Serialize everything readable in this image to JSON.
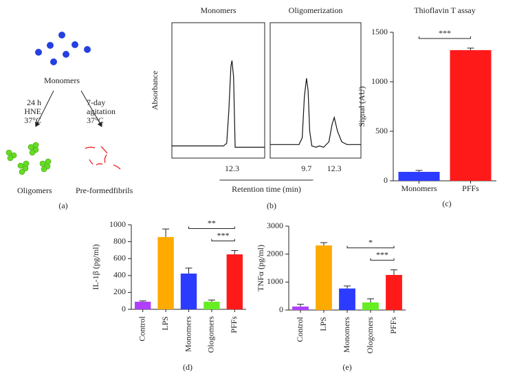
{
  "diagram": {
    "start": "Monomers",
    "left_conditions": [
      "24 h",
      "HNE",
      "37°C"
    ],
    "right_conditions": [
      "7-day",
      "agitation",
      "37°C"
    ],
    "left_product": "Oligomers",
    "right_product": "Pre-formedfibrils",
    "panel_label": "(a)"
  },
  "chart_data": [
    {
      "type": "line",
      "ylabel": "Absorbance",
      "xlabel": "Retention time (min)",
      "panel_label": "(b)",
      "panels": [
        {
          "title": "Monomers",
          "xlim": [
            6.6,
            15.4
          ],
          "ylim": [
            0,
            1
          ],
          "xticks": [
            12.3
          ],
          "color": "#111111",
          "x": [
            6.6,
            11.5,
            11.8,
            12.0,
            12.2,
            12.3,
            12.45,
            12.6,
            12.8,
            15.4
          ],
          "values": [
            0.09,
            0.09,
            0.11,
            0.35,
            0.68,
            0.72,
            0.6,
            0.08,
            0.08,
            0.08
          ]
        },
        {
          "title": "Oligomerization",
          "xlim": [
            6.3,
            14.8
          ],
          "ylim": [
            0,
            1
          ],
          "xticks": [
            9.7,
            12.3
          ],
          "color": "#111111",
          "x": [
            6.3,
            9.0,
            9.3,
            9.5,
            9.7,
            9.85,
            10.0,
            10.2,
            10.6,
            10.9,
            11.3,
            11.8,
            12.1,
            12.3,
            12.6,
            13.0,
            13.5,
            14.8
          ],
          "values": [
            0.1,
            0.1,
            0.15,
            0.45,
            0.59,
            0.5,
            0.2,
            0.09,
            0.08,
            0.09,
            0.08,
            0.12,
            0.25,
            0.3,
            0.2,
            0.12,
            0.1,
            0.1
          ]
        }
      ]
    },
    {
      "type": "bar",
      "title": "Thioflavin T assay",
      "ylabel": "Signal (AU)",
      "panel_label": "(c)",
      "categories": [
        "Monomers",
        "PFFs"
      ],
      "values": [
        90,
        1320
      ],
      "errors": [
        15,
        20
      ],
      "colors": [
        "#2b3bff",
        "#ff1a1a"
      ],
      "ylim": [
        0,
        1500
      ],
      "yticks": [
        0,
        500,
        1000,
        1500
      ],
      "annotations": [
        {
          "text": "***",
          "between": [
            "Monomers",
            "PFFs"
          ]
        }
      ]
    },
    {
      "type": "bar",
      "ylabel": "IL-1β (pg/ml)",
      "panel_label": "(d)",
      "categories": [
        "Control",
        "LPS",
        "Monomers",
        "Ologomers",
        "PFFs"
      ],
      "values": [
        90,
        855,
        423,
        90,
        650
      ],
      "errors": [
        10,
        95,
        65,
        20,
        45
      ],
      "colors": [
        "#b040ff",
        "#ffaa00",
        "#2b3bff",
        "#66ee22",
        "#ff1a1a"
      ],
      "ylim": [
        0,
        1000
      ],
      "yticks": [
        0,
        200,
        400,
        600,
        800,
        1000
      ],
      "annotations": [
        {
          "text": "**",
          "between": [
            "Monomers",
            "PFFs"
          ]
        },
        {
          "text": "***",
          "between": [
            "Ologomers",
            "PFFs"
          ]
        }
      ]
    },
    {
      "type": "bar",
      "ylabel": "TNFα (pg/ml)",
      "panel_label": "(e)",
      "categories": [
        "Control",
        "LPS",
        "Monomers",
        "Ologomers",
        "PFFs"
      ],
      "values": [
        125,
        2310,
        770,
        270,
        1255
      ],
      "errors": [
        80,
        100,
        90,
        130,
        180
      ],
      "colors": [
        "#b040ff",
        "#ffaa00",
        "#2b3bff",
        "#66ee22",
        "#ff1a1a"
      ],
      "ylim": [
        0,
        3000
      ],
      "yticks": [
        0,
        1000,
        2000,
        3000
      ],
      "annotations": [
        {
          "text": "*",
          "between": [
            "Monomers",
            "PFFs"
          ]
        },
        {
          "text": "***",
          "between": [
            "Ologomers",
            "PFFs"
          ]
        }
      ]
    }
  ]
}
